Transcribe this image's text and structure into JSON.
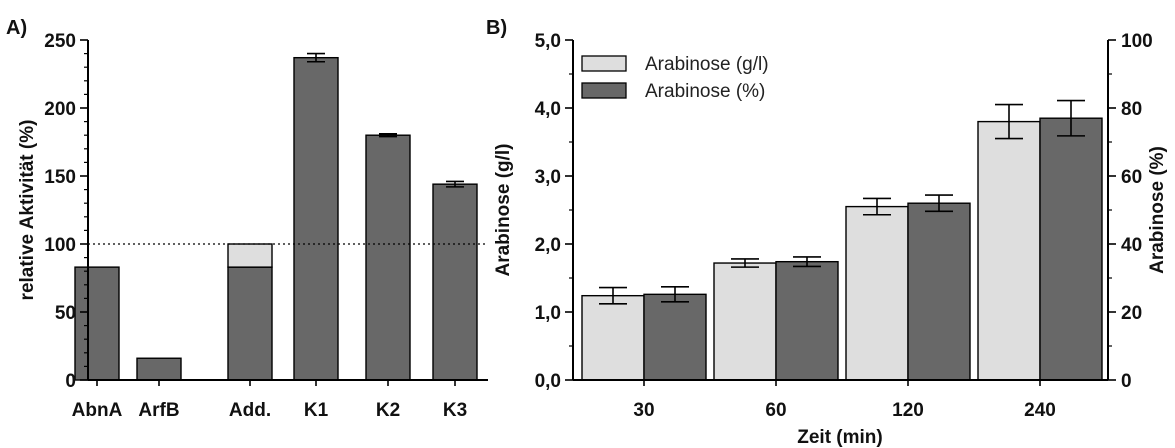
{
  "colors": {
    "dark": "#686868",
    "light": "#dedede",
    "axis": "#000000"
  },
  "chart_data": [
    {
      "type": "bar",
      "panel_label": "A)",
      "categories": [
        "AbnA",
        "ArfB",
        "Add.",
        "K1",
        "K2",
        "K3"
      ],
      "values": [
        83,
        16,
        83,
        237,
        180,
        144
      ],
      "errors": [
        0,
        0,
        0,
        3,
        1,
        2
      ],
      "stacked_top": {
        "category": "Add.",
        "from": 83,
        "to": 100
      },
      "reference_line": 100,
      "ylabel": "relative Aktivität (%)",
      "xlabel": "",
      "ylim": [
        0,
        250
      ],
      "yticks": [
        "0",
        "50",
        "100",
        "150",
        "200",
        "250"
      ]
    },
    {
      "type": "bar",
      "panel_label": "B)",
      "categories": [
        "30",
        "60",
        "120",
        "240"
      ],
      "series": [
        {
          "name": "Arabinose (g/l)",
          "axis": "left",
          "values": [
            1.24,
            1.72,
            2.55,
            3.8
          ],
          "errors": [
            0.12,
            0.06,
            0.12,
            0.25
          ]
        },
        {
          "name": "Arabinose (%)",
          "axis": "right",
          "values": [
            25.2,
            34.8,
            52.0,
            77.0
          ],
          "errors": [
            2.2,
            1.4,
            2.4,
            5.2
          ]
        }
      ],
      "xlabel": "Zeit (min)",
      "ylabel": "Arabinose (g/l)",
      "ylabel_right": "Arabinose (%)",
      "ylim": [
        0,
        5
      ],
      "ylim_right": [
        0,
        100
      ],
      "yticks": [
        "0,0",
        "1,0",
        "2,0",
        "3,0",
        "4,0",
        "5,0"
      ],
      "yticks_right": [
        "0",
        "20",
        "40",
        "60",
        "80",
        "100"
      ],
      "legend": "top-left"
    }
  ]
}
